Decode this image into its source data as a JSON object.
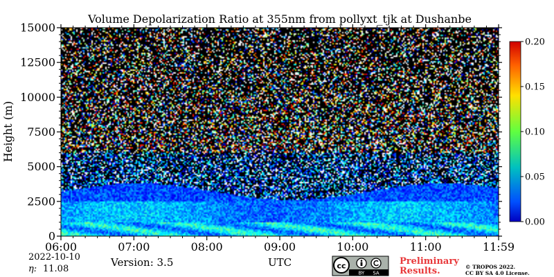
{
  "chart_data": {
    "type": "heatmap",
    "title": "Volume Depolarization Ratio at 355nm from pollyxt_tjk at Dushanbe",
    "xlabel": "UTC",
    "ylabel": "Height (m)",
    "x_ticks": [
      "06:00",
      "07:00",
      "08:00",
      "09:00",
      "10:00",
      "11:00",
      "11:59"
    ],
    "y_ticks": [
      0,
      2500,
      5000,
      7500,
      10000,
      12500,
      15000
    ],
    "y_tick_labels": [
      "0",
      "2500",
      "5000",
      "7500",
      "10000",
      "12500",
      "15000"
    ],
    "xlim": [
      "06:00",
      "11:59"
    ],
    "ylim": [
      0,
      15000
    ],
    "colorbar": {
      "range": [
        0.0,
        0.2
      ],
      "ticks": [
        0.0,
        0.05,
        0.1,
        0.15,
        0.2
      ],
      "tick_labels": [
        "0.00",
        "0.05",
        "0.10",
        "0.15",
        "0.20"
      ],
      "colormap": "jet"
    },
    "layers": [
      {
        "from_m": 0,
        "to_m": 1000,
        "value": 0.07
      },
      {
        "from_m": 1000,
        "to_m": 2500,
        "value": 0.06
      },
      {
        "from_m": 2500,
        "to_m": 3600,
        "value": 0.04
      },
      {
        "from_m": 3600,
        "to_m": 15000,
        "value": "noisy"
      }
    ]
  },
  "footer": {
    "date": "2022-10-10",
    "eta_symbol": "η:",
    "eta_value": "11.08",
    "version": "Version: 3.5",
    "preliminary_line1": "Preliminary",
    "preliminary_line2": "Results.",
    "copyright_line1": "© TROPOS 2022.",
    "copyright_line2": "CC BY SA 4.0 License."
  },
  "license_badge": {
    "labels": [
      "BY",
      "SA"
    ]
  },
  "colors": {
    "preliminary_text": "#e8383a",
    "background": "#ffffff"
  }
}
